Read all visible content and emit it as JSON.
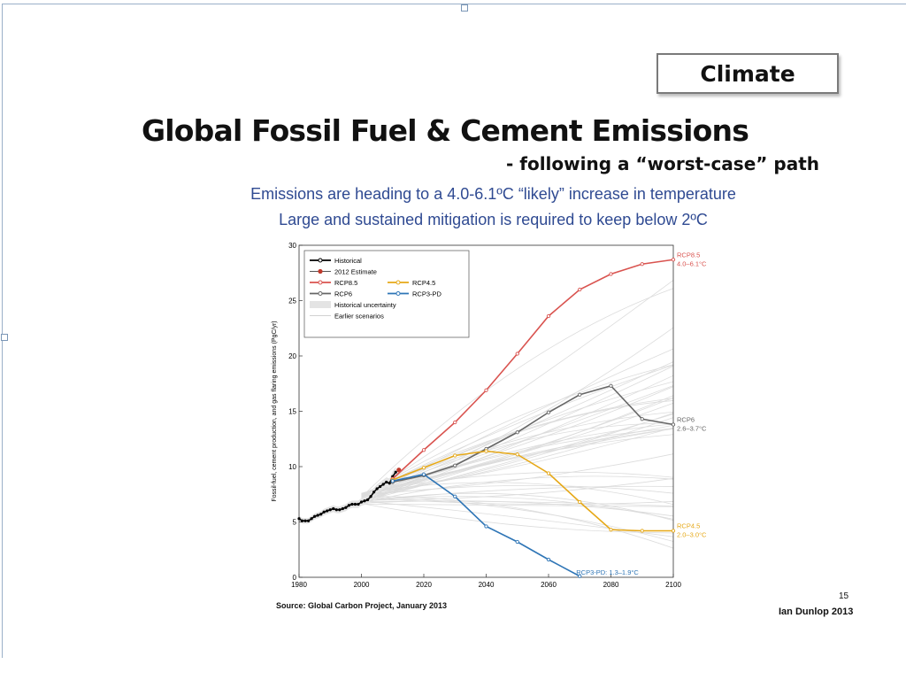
{
  "slide": {
    "tag": "Climate",
    "title": "Global Fossil Fuel & Cement Emissions",
    "subtitle": "- following a “worst-case” path",
    "note1": "Emissions are heading to a 4.0-6.1ºC “likely” increase in temperature",
    "note2": "Large and sustained mitigation is required to keep below 2ºC",
    "source": "Source: Global Carbon Project, January 2013",
    "page_number": "15",
    "author": "Ian Dunlop 2013"
  },
  "chart_data": {
    "type": "line",
    "title": "",
    "xlabel": "",
    "ylabel": "Fossil-fuel, cement production, and gas flaring emissions (PgC/yr)",
    "xlim": [
      1980,
      2100
    ],
    "ylim": [
      0,
      30
    ],
    "x_ticks": [
      1980,
      2000,
      2020,
      2040,
      2060,
      2080,
      2100
    ],
    "y_ticks": [
      0,
      5,
      10,
      15,
      20,
      25,
      30
    ],
    "legend_position": "top-left",
    "legend": [
      {
        "label": "Historical",
        "color": "#000000",
        "style": "line-marker"
      },
      {
        "label": "2012 Estimate",
        "color": "#c0392b",
        "style": "marker"
      },
      {
        "label": "RCP8.5",
        "color": "#d9534f",
        "style": "line-marker"
      },
      {
        "label": "RCP4.5",
        "color": "#e6a817",
        "style": "line-marker"
      },
      {
        "label": "RCP6",
        "color": "#666666",
        "style": "line-marker"
      },
      {
        "label": "RCP3-PD",
        "color": "#2e75b6",
        "style": "line-marker"
      },
      {
        "label": "Historical uncertainty",
        "color": "#e4e4e4",
        "style": "patch"
      },
      {
        "label": "Earlier scenarios",
        "color": "#d2d2d2",
        "style": "faint-line"
      }
    ],
    "series": [
      {
        "name": "Historical",
        "color": "#000000",
        "x": [
          1980,
          1981,
          1982,
          1983,
          1984,
          1985,
          1986,
          1987,
          1988,
          1989,
          1990,
          1991,
          1992,
          1993,
          1994,
          1995,
          1996,
          1997,
          1998,
          1999,
          2000,
          2001,
          2002,
          2003,
          2004,
          2005,
          2006,
          2007,
          2008,
          2009,
          2010,
          2011
        ],
        "y": [
          5.3,
          5.1,
          5.1,
          5.1,
          5.3,
          5.5,
          5.6,
          5.7,
          5.9,
          6.0,
          6.1,
          6.2,
          6.1,
          6.1,
          6.2,
          6.3,
          6.5,
          6.6,
          6.6,
          6.6,
          6.8,
          6.9,
          7.0,
          7.3,
          7.7,
          8.0,
          8.2,
          8.4,
          8.6,
          8.5,
          9.1,
          9.5
        ]
      },
      {
        "name": "2012 Estimate",
        "color": "#c0392b",
        "x": [
          2012
        ],
        "y": [
          9.7
        ]
      },
      {
        "name": "RCP8.5",
        "color": "#d9534f",
        "end_label": "RCP8.5",
        "end_sublabel": "4.0–6.1°C",
        "x": [
          2010,
          2020,
          2030,
          2040,
          2050,
          2060,
          2070,
          2080,
          2090,
          2100
        ],
        "y": [
          8.9,
          11.5,
          14.0,
          16.9,
          20.2,
          23.6,
          26.0,
          27.4,
          28.3,
          28.7
        ]
      },
      {
        "name": "RCP6",
        "color": "#666666",
        "end_label": "RCP6",
        "end_sublabel": "2.6–3.7°C",
        "x": [
          2010,
          2020,
          2030,
          2040,
          2050,
          2060,
          2070,
          2080,
          2090,
          2100
        ],
        "y": [
          8.6,
          9.2,
          10.1,
          11.6,
          13.1,
          14.9,
          16.5,
          17.3,
          14.3,
          13.8
        ]
      },
      {
        "name": "RCP4.5",
        "color": "#e6a817",
        "end_label": "RCP4.5",
        "end_sublabel": "2.0–3.0°C",
        "x": [
          2010,
          2020,
          2030,
          2040,
          2050,
          2060,
          2070,
          2080,
          2090,
          2100
        ],
        "y": [
          8.8,
          9.9,
          11.0,
          11.4,
          11.1,
          9.4,
          6.8,
          4.3,
          4.2,
          4.2
        ]
      },
      {
        "name": "RCP3-PD",
        "color": "#2e75b6",
        "end_label": "RCP3-PD: 1.3–1.9°C",
        "end_sublabel": "",
        "x": [
          2010,
          2020,
          2030,
          2040,
          2050,
          2060,
          2070
        ],
        "y": [
          8.7,
          9.3,
          7.3,
          4.6,
          3.2,
          1.6,
          0.1
        ]
      }
    ]
  }
}
